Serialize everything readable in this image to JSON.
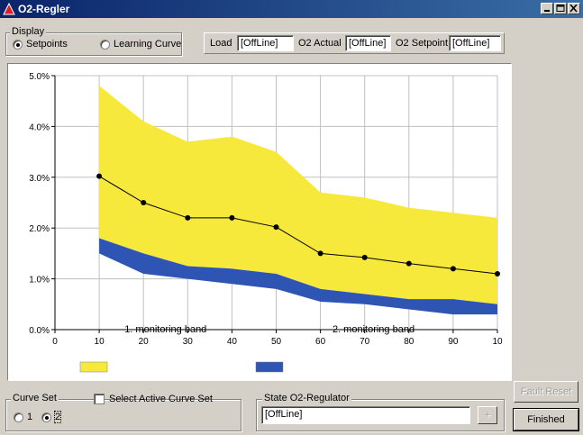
{
  "window": {
    "title": "O2-Regler"
  },
  "display": {
    "label": "Display",
    "options": [
      {
        "label": "Setpoints",
        "checked": true
      },
      {
        "label": "Learning Curve",
        "checked": false
      }
    ]
  },
  "readouts": [
    {
      "label": "Load",
      "value": "[OffLine]"
    },
    {
      "label": "O2 Actual",
      "value": "[OffLine]"
    },
    {
      "label": "O2 Setpoint",
      "value": "[OffLine]"
    }
  ],
  "chart_data": {
    "type": "area",
    "x": [
      10,
      20,
      30,
      40,
      50,
      60,
      70,
      80,
      90,
      100
    ],
    "x_tick_labels": [
      "0",
      "10",
      "20",
      "30",
      "40",
      "50",
      "60",
      "70",
      "80",
      "90",
      "10"
    ],
    "xlim": [
      0,
      100
    ],
    "ylim": [
      0,
      5
    ],
    "y_ticks": [
      0,
      1,
      2,
      3,
      4,
      5
    ],
    "y_tick_labels": [
      "0.0%",
      "1.0%",
      "2.0%",
      "3.0%",
      "4.0%",
      "5.0%"
    ],
    "grid": true,
    "series": [
      {
        "kind": "band",
        "color": "#f7e83c",
        "lower": [
          1.8,
          1.5,
          1.25,
          1.2,
          1.1,
          0.8,
          0.7,
          0.6,
          0.6,
          0.5
        ],
        "upper": [
          4.8,
          4.1,
          3.7,
          3.8,
          3.5,
          2.7,
          2.6,
          2.4,
          2.3,
          2.2
        ]
      },
      {
        "kind": "band",
        "color": "#2e55b3",
        "lower": [
          1.5,
          1.1,
          1.0,
          0.9,
          0.8,
          0.55,
          0.5,
          0.4,
          0.3,
          0.3
        ],
        "upper": [
          1.8,
          1.5,
          1.25,
          1.2,
          1.1,
          0.8,
          0.7,
          0.6,
          0.6,
          0.5
        ]
      },
      {
        "kind": "line",
        "color": "#000000",
        "values": [
          3.02,
          2.5,
          2.2,
          2.2,
          2.02,
          1.5,
          1.42,
          1.3,
          1.2,
          1.1
        ]
      }
    ],
    "annotations": [
      {
        "text": "1. monitoring band",
        "x": 25
      },
      {
        "text": "2. monitoring band",
        "x": 72
      }
    ],
    "legend": [
      {
        "color": "#f7e83c"
      },
      {
        "color": "#2e55b3"
      }
    ]
  },
  "curve_set": {
    "label": "Curve Set",
    "options": [
      {
        "label": "1",
        "checked": false
      },
      {
        "label": "2",
        "checked": true
      }
    ],
    "select_active_label": "Select Active Curve Set"
  },
  "state": {
    "label": "State O2-Regulator",
    "value": "[OffLine]",
    "button_label": "+"
  },
  "buttons": {
    "fault_reset": "Fault Reset",
    "finished": "Finished"
  }
}
